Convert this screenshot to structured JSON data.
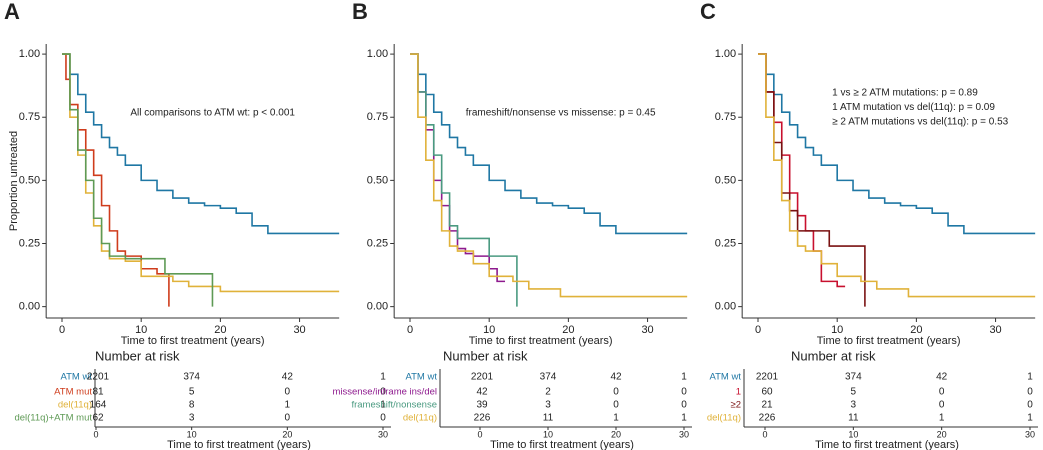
{
  "chart_data": [
    {
      "type": "step",
      "panel": "A",
      "ylabel": "Proportion untreated",
      "xlabel": "Time to first treatment (years)",
      "annotations": [
        "All comparisons to ATM wt: p < 0.001"
      ],
      "xlim": [
        -2,
        35
      ],
      "ylim": [
        -0.045,
        1.04
      ],
      "xticks": [
        0,
        10,
        20,
        30
      ],
      "yticks": [
        {
          "value": 0,
          "label": "0.00"
        },
        {
          "value": 0.25,
          "label": "0.25"
        },
        {
          "value": 0.5,
          "label": "0.50"
        },
        {
          "value": 0.75,
          "label": "0.75"
        },
        {
          "value": 1,
          "label": "1.00"
        }
      ],
      "risk_title": "Number at risk",
      "risk_xlabel": "Time to first treatment (years)",
      "series": [
        {
          "name": "ATM wt",
          "color": "#1f77a4",
          "x": [
            0,
            1,
            2,
            3,
            4,
            5,
            6,
            7,
            8,
            10,
            12,
            14,
            16,
            18,
            20,
            22,
            24,
            26,
            35
          ],
          "values": [
            1,
            0.92,
            0.84,
            0.77,
            0.72,
            0.67,
            0.63,
            0.6,
            0.56,
            0.5,
            0.46,
            0.43,
            0.41,
            0.4,
            0.39,
            0.37,
            0.32,
            0.29,
            0.29
          ],
          "at_risk": [
            2201,
            374,
            42,
            1
          ]
        },
        {
          "name": "ATM mut",
          "color": "#cf3c1c",
          "x": [
            0,
            0.5,
            1,
            2,
            3,
            4,
            5,
            6,
            7,
            8,
            10,
            12,
            13.5,
            13.5
          ],
          "values": [
            1,
            0.9,
            0.8,
            0.7,
            0.62,
            0.52,
            0.4,
            0.3,
            0.22,
            0.2,
            0.15,
            0.13,
            0.13,
            0
          ],
          "at_risk": [
            81,
            5,
            0,
            0
          ]
        },
        {
          "name": "del(11q)",
          "color": "#e0b23a",
          "x": [
            0,
            1,
            2,
            3,
            4,
            5,
            6,
            8,
            10,
            14,
            16,
            20,
            35
          ],
          "values": [
            1,
            0.75,
            0.6,
            0.45,
            0.32,
            0.22,
            0.19,
            0.18,
            0.12,
            0.1,
            0.08,
            0.06,
            0.06
          ],
          "at_risk": [
            164,
            8,
            1,
            1
          ]
        },
        {
          "name": "del(11q)+ATM mut",
          "color": "#5e9a55",
          "x": [
            0,
            1,
            2,
            3,
            4,
            5,
            6,
            8,
            12,
            13,
            19,
            19
          ],
          "values": [
            1,
            0.78,
            0.62,
            0.5,
            0.35,
            0.25,
            0.2,
            0.19,
            0.19,
            0.13,
            0.13,
            0
          ],
          "at_risk": [
            62,
            3,
            0,
            0
          ]
        }
      ]
    },
    {
      "type": "step",
      "panel": "B",
      "xlabel": "Time to first treatment (years)",
      "annotations": [
        "frameshift/nonsense vs missense: p = 0.45"
      ],
      "xlim": [
        -2,
        35
      ],
      "ylim": [
        -0.045,
        1.04
      ],
      "xticks": [
        0,
        10,
        20,
        30
      ],
      "yticks": [
        {
          "value": 0,
          "label": "0.00"
        },
        {
          "value": 0.25,
          "label": "0.25"
        },
        {
          "value": 0.5,
          "label": "0.50"
        },
        {
          "value": 0.75,
          "label": "0.75"
        },
        {
          "value": 1,
          "label": "1.00"
        }
      ],
      "risk_title": "Number at risk",
      "risk_xlabel": "Time to first treatment (years)",
      "series": [
        {
          "name": "ATM wt",
          "color": "#1f77a4",
          "x": [
            0,
            1,
            2,
            3,
            4,
            5,
            6,
            7,
            8,
            10,
            12,
            14,
            16,
            18,
            20,
            22,
            24,
            26,
            35
          ],
          "values": [
            1,
            0.92,
            0.84,
            0.77,
            0.72,
            0.67,
            0.63,
            0.6,
            0.56,
            0.5,
            0.46,
            0.43,
            0.41,
            0.4,
            0.39,
            0.37,
            0.32,
            0.29,
            0.29
          ],
          "at_risk": [
            2201,
            374,
            42,
            1
          ]
        },
        {
          "name": "missense/inframe ins/del",
          "color": "#8e1a8e",
          "x": [
            0,
            1,
            2,
            3,
            4,
            5,
            6,
            7,
            8,
            10,
            11,
            12
          ],
          "values": [
            1,
            0.85,
            0.7,
            0.5,
            0.4,
            0.3,
            0.23,
            0.21,
            0.2,
            0.15,
            0.1,
            0.1
          ],
          "at_risk": [
            42,
            2,
            0,
            0
          ]
        },
        {
          "name": "frameshift/nonsense",
          "color": "#4a9a80",
          "x": [
            0,
            1,
            2,
            3,
            4,
            5,
            6,
            8,
            10,
            13.5,
            13.5
          ],
          "values": [
            1,
            0.85,
            0.72,
            0.6,
            0.45,
            0.32,
            0.27,
            0.27,
            0.2,
            0.2,
            0
          ],
          "at_risk": [
            39,
            3,
            0,
            0
          ]
        },
        {
          "name": "del(11q)",
          "color": "#e0b23a",
          "x": [
            0,
            1,
            2,
            3,
            4,
            5,
            6,
            8,
            10,
            13,
            15,
            19,
            35
          ],
          "values": [
            1,
            0.75,
            0.58,
            0.42,
            0.3,
            0.24,
            0.22,
            0.17,
            0.12,
            0.1,
            0.07,
            0.04,
            0.04
          ],
          "at_risk": [
            226,
            11,
            1,
            1
          ]
        }
      ]
    },
    {
      "type": "step",
      "panel": "C",
      "xlabel": "Time to first treatment (years)",
      "annotations": [
        "1 vs ≥ 2 ATM mutations: p = 0.89",
        "1 ATM mutation vs del(11q): p = 0.09",
        "≥ 2 ATM mutations vs del(11q): p = 0.53"
      ],
      "xlim": [
        -2,
        35
      ],
      "ylim": [
        -0.045,
        1.04
      ],
      "xticks": [
        0,
        10,
        20,
        30
      ],
      "yticks": [
        {
          "value": 0,
          "label": "0.00"
        },
        {
          "value": 0.25,
          "label": "0.25"
        },
        {
          "value": 0.5,
          "label": "0.50"
        },
        {
          "value": 0.75,
          "label": "0.75"
        },
        {
          "value": 1,
          "label": "1.00"
        }
      ],
      "risk_title": "Number at risk",
      "risk_xlabel": "Time to first treatment (years)",
      "series": [
        {
          "name": "ATM wt",
          "color": "#1f77a4",
          "x": [
            0,
            1,
            2,
            3,
            4,
            5,
            6,
            7,
            8,
            10,
            12,
            14,
            16,
            18,
            20,
            22,
            24,
            26,
            35
          ],
          "values": [
            1,
            0.92,
            0.84,
            0.77,
            0.72,
            0.67,
            0.63,
            0.6,
            0.56,
            0.5,
            0.46,
            0.43,
            0.41,
            0.4,
            0.39,
            0.37,
            0.32,
            0.29,
            0.29
          ],
          "at_risk": [
            2201,
            374,
            42,
            1
          ]
        },
        {
          "name": "1",
          "color": "#c8102e",
          "x": [
            0,
            1,
            2,
            3,
            4,
            5,
            6,
            7,
            8,
            10,
            11
          ],
          "values": [
            1,
            0.85,
            0.73,
            0.6,
            0.45,
            0.36,
            0.3,
            0.22,
            0.1,
            0.08,
            0.08
          ],
          "at_risk": [
            60,
            5,
            0,
            0
          ]
        },
        {
          "name": "≥2",
          "color": "#7a1212",
          "x": [
            0,
            1,
            2,
            3,
            4,
            5,
            8,
            9,
            13.5,
            13.5
          ],
          "values": [
            1,
            0.85,
            0.65,
            0.45,
            0.38,
            0.3,
            0.3,
            0.24,
            0.24,
            0
          ],
          "at_risk": [
            21,
            3,
            0,
            0
          ]
        },
        {
          "name": "del(11q)",
          "color": "#e0b23a",
          "x": [
            0,
            1,
            2,
            3,
            4,
            5,
            6,
            8,
            10,
            13,
            15,
            19,
            35
          ],
          "values": [
            1,
            0.75,
            0.58,
            0.42,
            0.3,
            0.24,
            0.22,
            0.17,
            0.12,
            0.1,
            0.07,
            0.04,
            0.04
          ],
          "at_risk": [
            226,
            11,
            1,
            1
          ]
        }
      ]
    }
  ]
}
